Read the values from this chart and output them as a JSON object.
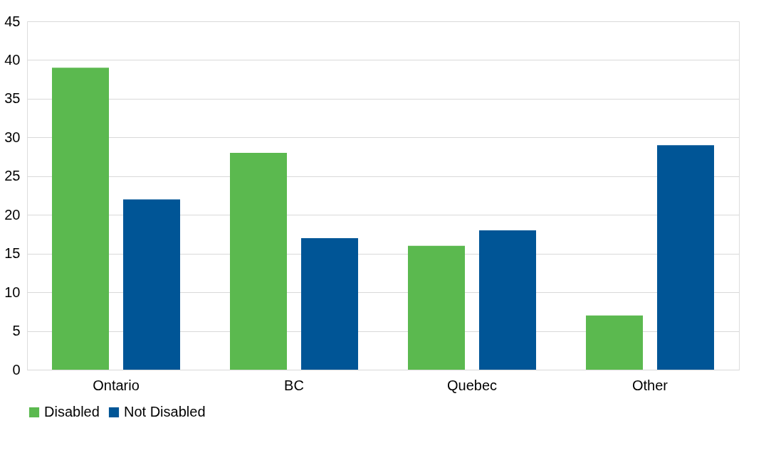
{
  "chart_data": {
    "type": "bar",
    "categories": [
      "Ontario",
      "BC",
      "Quebec",
      "Other"
    ],
    "series": [
      {
        "name": "Disabled",
        "color": "#5bb94f",
        "values": [
          39,
          28,
          16,
          7
        ]
      },
      {
        "name": "Not Disabled",
        "color": "#005596",
        "values": [
          22,
          17,
          18,
          29
        ]
      }
    ],
    "ylim": [
      0,
      45
    ],
    "yticks": [
      0,
      5,
      10,
      15,
      20,
      25,
      30,
      35,
      40,
      45
    ],
    "grid": "y",
    "legend": "bottom"
  }
}
